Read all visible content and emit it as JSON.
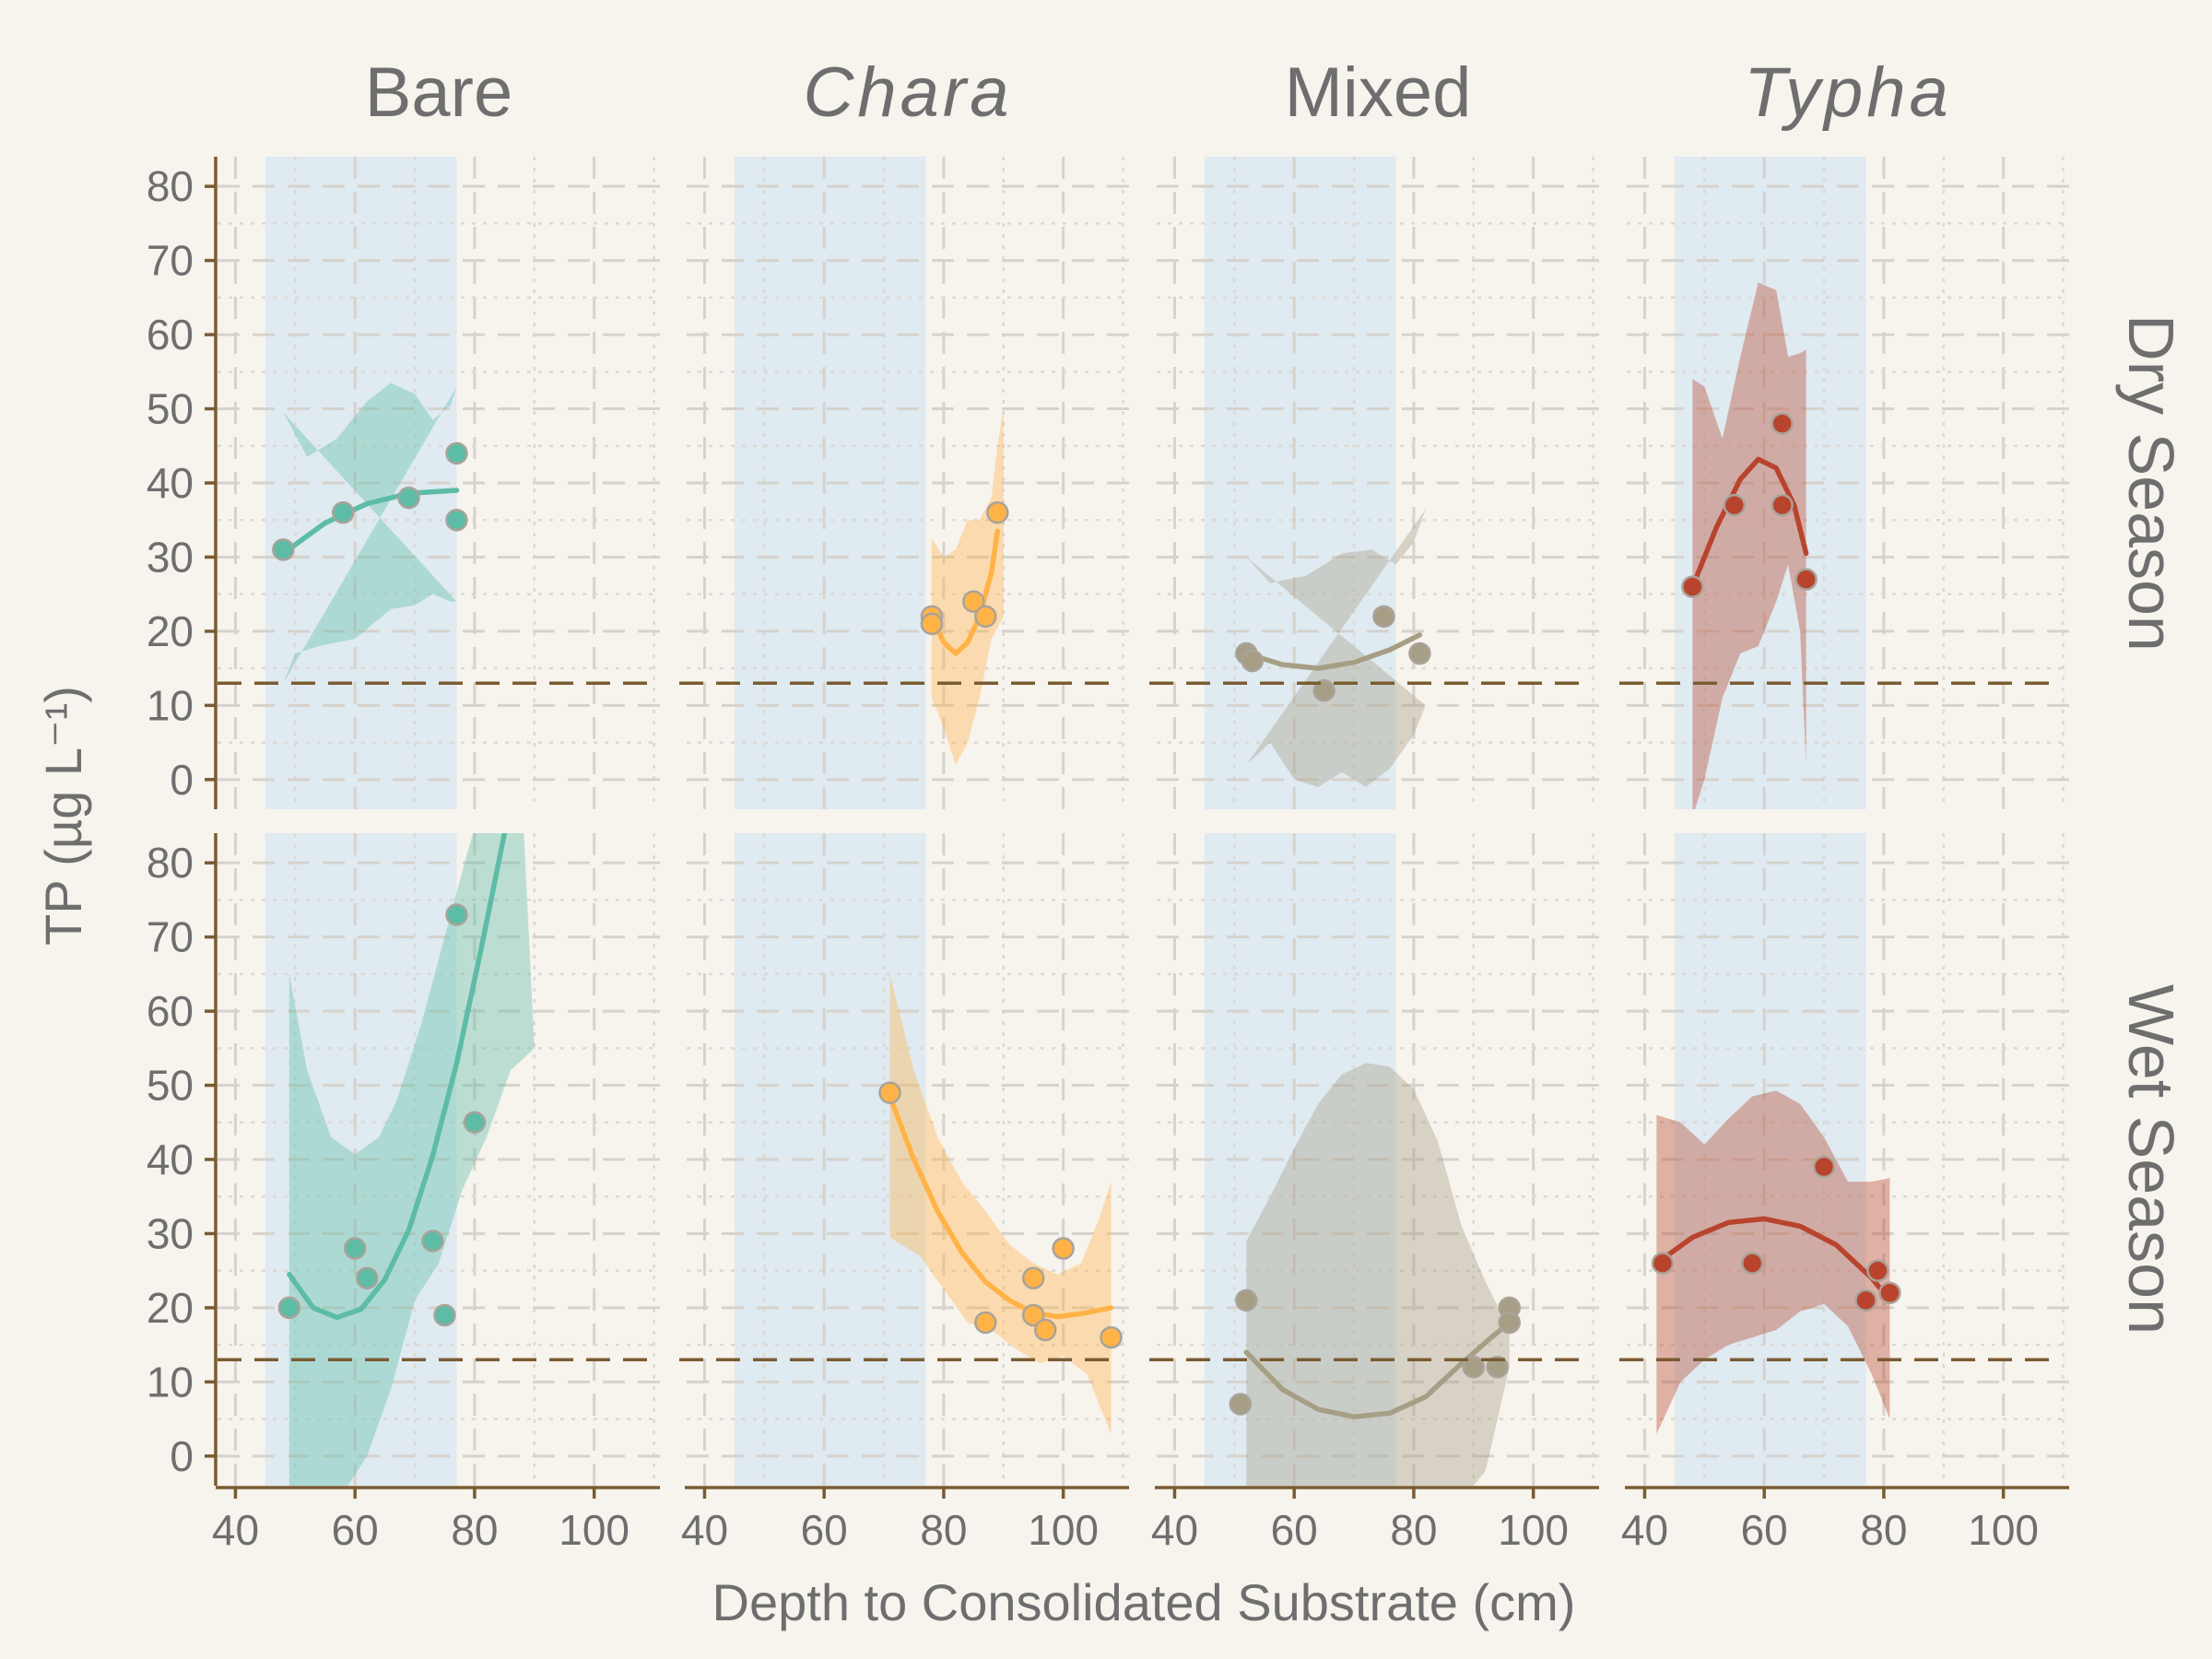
{
  "chart_data": {
    "type": "scatter",
    "facets": {
      "columns": [
        {
          "key": "bare",
          "label": "Bare",
          "italic": false
        },
        {
          "key": "chara",
          "label": "Chara",
          "italic": true
        },
        {
          "key": "mixed",
          "label": "Mixed",
          "italic": false
        },
        {
          "key": "typha",
          "label": "Typha",
          "italic": true
        }
      ],
      "rows": [
        {
          "key": "dry",
          "label": "Dry Season"
        },
        {
          "key": "wet",
          "label": "Wet Season"
        }
      ]
    },
    "xlabel": "Depth to Consolidated Substrate (cm)",
    "ylabel": "TP (µg L⁻¹)",
    "xlim": [
      37,
      111
    ],
    "ylim": [
      -4,
      84
    ],
    "xticks": [
      40,
      60,
      80,
      100
    ],
    "yticks": [
      0,
      10,
      20,
      30,
      40,
      50,
      60,
      70,
      80
    ],
    "threshold_y": 13,
    "shaded_band_x": [
      45,
      77
    ],
    "grid": true,
    "colors": {
      "background": "#f7f3ed",
      "band": "#dfeaf1",
      "threshold": "#7a5c32",
      "bare": "#5dbca5",
      "chara": "#ffb347",
      "mixed": "#a69e85",
      "typha": "#b9442d"
    },
    "panels": [
      {
        "row": "dry",
        "col": "bare",
        "points": [
          [
            48,
            31
          ],
          [
            58,
            36
          ],
          [
            69,
            38
          ],
          [
            77,
            44
          ],
          [
            77,
            35
          ]
        ],
        "fit": [
          [
            48,
            30.5
          ],
          [
            55,
            34.6
          ],
          [
            62,
            37.2
          ],
          [
            69,
            38.6
          ],
          [
            77,
            39
          ]
        ],
        "ribbon_upper": [
          [
            48,
            49.5
          ],
          [
            52,
            43.5
          ],
          [
            57,
            46
          ],
          [
            62,
            51
          ],
          [
            66,
            53.5
          ],
          [
            70,
            52
          ],
          [
            73,
            48.5
          ],
          [
            76,
            50.5
          ],
          [
            77,
            53
          ]
        ],
        "ribbon_lower": [
          [
            48,
            13
          ],
          [
            50,
            17
          ],
          [
            54,
            18
          ],
          [
            60,
            19
          ],
          [
            66,
            23
          ],
          [
            70,
            23.5
          ],
          [
            73,
            25
          ],
          [
            76,
            24
          ],
          [
            77,
            24
          ]
        ]
      },
      {
        "row": "dry",
        "col": "chara",
        "points": [
          [
            78,
            22
          ],
          [
            78,
            21
          ],
          [
            85,
            24
          ],
          [
            87,
            22
          ],
          [
            89,
            36
          ]
        ],
        "fit": [
          [
            78,
            22
          ],
          [
            80,
            18.5
          ],
          [
            82,
            17
          ],
          [
            84,
            18.5
          ],
          [
            86,
            22
          ],
          [
            88,
            28
          ],
          [
            89,
            33.5
          ]
        ],
        "ribbon_upper": [
          [
            78,
            32.5
          ],
          [
            80,
            30
          ],
          [
            82,
            31
          ],
          [
            84,
            35
          ],
          [
            86,
            35
          ],
          [
            88,
            38
          ],
          [
            89,
            45
          ],
          [
            90,
            50
          ]
        ],
        "ribbon_lower": [
          [
            90,
            22
          ],
          [
            88,
            19
          ],
          [
            86,
            11
          ],
          [
            84,
            5
          ],
          [
            82,
            2
          ],
          [
            80,
            7
          ],
          [
            78,
            11
          ]
        ]
      },
      {
        "row": "dry",
        "col": "mixed",
        "points": [
          [
            52,
            17
          ],
          [
            53,
            16
          ],
          [
            65,
            12
          ],
          [
            75,
            22
          ],
          [
            81,
            17
          ]
        ],
        "fit": [
          [
            52,
            17
          ],
          [
            58,
            15.5
          ],
          [
            64,
            15
          ],
          [
            70,
            15.8
          ],
          [
            76,
            17.5
          ],
          [
            81,
            19.5
          ]
        ],
        "ribbon_upper": [
          [
            52,
            30
          ],
          [
            56,
            26.5
          ],
          [
            62,
            27.5
          ],
          [
            68,
            30.5
          ],
          [
            73,
            31
          ],
          [
            77,
            29
          ],
          [
            80,
            32
          ],
          [
            82,
            36.5
          ]
        ],
        "ribbon_lower": [
          [
            52,
            2
          ],
          [
            56,
            5
          ],
          [
            60,
            0
          ],
          [
            64,
            -1
          ],
          [
            68,
            1
          ],
          [
            72,
            -1
          ],
          [
            76,
            1.5
          ],
          [
            80,
            6
          ],
          [
            82,
            10
          ]
        ]
      },
      {
        "row": "dry",
        "col": "typha",
        "points": [
          [
            48,
            26
          ],
          [
            55,
            37
          ],
          [
            63,
            48
          ],
          [
            63,
            37
          ],
          [
            67,
            27
          ]
        ],
        "fit": [
          [
            48,
            26
          ],
          [
            52,
            34
          ],
          [
            56,
            40.5
          ],
          [
            59,
            43.2
          ],
          [
            62,
            42
          ],
          [
            65,
            37
          ],
          [
            67,
            30.5
          ]
        ],
        "ribbon_upper": [
          [
            48,
            54
          ],
          [
            50,
            53
          ],
          [
            53,
            46
          ],
          [
            56,
            57
          ],
          [
            59,
            67
          ],
          [
            62,
            66
          ],
          [
            64,
            57
          ],
          [
            66,
            57.5
          ],
          [
            67,
            58
          ]
        ],
        "ribbon_lower": [
          [
            67,
            2
          ],
          [
            66,
            20
          ],
          [
            64,
            29
          ],
          [
            62,
            24
          ],
          [
            59,
            18
          ],
          [
            56,
            17
          ],
          [
            53,
            11
          ],
          [
            50,
            0
          ],
          [
            48,
            -5
          ]
        ]
      },
      {
        "row": "wet",
        "col": "bare",
        "points": [
          [
            49,
            20
          ],
          [
            60,
            28
          ],
          [
            62,
            24
          ],
          [
            73,
            29
          ],
          [
            75,
            19
          ],
          [
            77,
            73
          ],
          [
            80,
            45
          ]
        ],
        "fit": [
          [
            49,
            24.5
          ],
          [
            53,
            20
          ],
          [
            57,
            18.7
          ],
          [
            61,
            19.8
          ],
          [
            65,
            23.8
          ],
          [
            69,
            30.5
          ],
          [
            73,
            40.5
          ],
          [
            77,
            53
          ],
          [
            81,
            68
          ],
          [
            85,
            84
          ]
        ],
        "ribbon_upper": [
          [
            49,
            65
          ],
          [
            52,
            52
          ],
          [
            56,
            43
          ],
          [
            60,
            40.7
          ],
          [
            64,
            43
          ],
          [
            67,
            48
          ],
          [
            71,
            58
          ],
          [
            75,
            70
          ],
          [
            79,
            82
          ],
          [
            82,
            90
          ],
          [
            86,
            90
          ],
          [
            88,
            88
          ],
          [
            90,
            55
          ]
        ],
        "ribbon_lower": [
          [
            90,
            55
          ],
          [
            86,
            52
          ],
          [
            82,
            43
          ],
          [
            78,
            36
          ],
          [
            74,
            26
          ],
          [
            70,
            21
          ],
          [
            66,
            9
          ],
          [
            62,
            0
          ],
          [
            58,
            -5
          ],
          [
            53,
            -6
          ],
          [
            49,
            -6
          ]
        ]
      },
      {
        "row": "wet",
        "col": "chara",
        "points": [
          [
            71,
            49
          ],
          [
            87,
            18
          ],
          [
            95,
            24
          ],
          [
            95,
            19
          ],
          [
            97,
            17
          ],
          [
            100,
            28
          ],
          [
            108,
            16
          ]
        ],
        "fit": [
          [
            71,
            48.5
          ],
          [
            75,
            40
          ],
          [
            79,
            33
          ],
          [
            83,
            27.5
          ],
          [
            87,
            23.5
          ],
          [
            91,
            21
          ],
          [
            95,
            19.3
          ],
          [
            99,
            18.8
          ],
          [
            103,
            19.2
          ],
          [
            108,
            20
          ]
        ],
        "ribbon_upper": [
          [
            71,
            65
          ],
          [
            75,
            52
          ],
          [
            79,
            43
          ],
          [
            83,
            37
          ],
          [
            87,
            33
          ],
          [
            91,
            28.5
          ],
          [
            95,
            26
          ],
          [
            99,
            24.5
          ],
          [
            103,
            26
          ],
          [
            106,
            32
          ],
          [
            108,
            37
          ]
        ],
        "ribbon_lower": [
          [
            108,
            3
          ],
          [
            104,
            11
          ],
          [
            100,
            13.5
          ],
          [
            96,
            12.5
          ],
          [
            92,
            14.5
          ],
          [
            88,
            17
          ],
          [
            84,
            18
          ],
          [
            80,
            22.5
          ],
          [
            76,
            27
          ],
          [
            71,
            29.5
          ]
        ]
      },
      {
        "row": "wet",
        "col": "mixed",
        "points": [
          [
            51,
            7
          ],
          [
            52,
            21
          ],
          [
            90,
            12
          ],
          [
            94,
            12
          ],
          [
            96,
            20
          ],
          [
            96,
            18
          ]
        ],
        "fit": [
          [
            52,
            14
          ],
          [
            58,
            9
          ],
          [
            64,
            6.3
          ],
          [
            70,
            5.3
          ],
          [
            76,
            5.8
          ],
          [
            82,
            8
          ],
          [
            88,
            12.5
          ],
          [
            93,
            16
          ],
          [
            96,
            18
          ]
        ],
        "ribbon_upper": [
          [
            52,
            29
          ],
          [
            56,
            35
          ],
          [
            60,
            41.5
          ],
          [
            64,
            47.5
          ],
          [
            68,
            51.5
          ],
          [
            72,
            53
          ],
          [
            76,
            52.5
          ],
          [
            80,
            49.5
          ],
          [
            84,
            42.5
          ],
          [
            88,
            31
          ],
          [
            92,
            23.5
          ],
          [
            96,
            17
          ]
        ],
        "ribbon_lower": [
          [
            96,
            12
          ],
          [
            92,
            -2
          ],
          [
            88,
            -6
          ],
          [
            52,
            -6
          ]
        ]
      },
      {
        "row": "wet",
        "col": "typha",
        "points": [
          [
            43,
            26
          ],
          [
            58,
            26
          ],
          [
            70,
            39
          ],
          [
            77,
            21
          ],
          [
            79,
            25
          ],
          [
            81,
            22
          ]
        ],
        "fit": [
          [
            42,
            26
          ],
          [
            48,
            29.5
          ],
          [
            54,
            31.5
          ],
          [
            60,
            32
          ],
          [
            66,
            31
          ],
          [
            72,
            28.5
          ],
          [
            78,
            24
          ],
          [
            81,
            21
          ]
        ],
        "ribbon_upper": [
          [
            42,
            46
          ],
          [
            46,
            45
          ],
          [
            50,
            42
          ],
          [
            54,
            45.5
          ],
          [
            58,
            48.5
          ],
          [
            62,
            49.3
          ],
          [
            66,
            47.5
          ],
          [
            70,
            43
          ],
          [
            74,
            37
          ],
          [
            78,
            37
          ],
          [
            81,
            37.5
          ]
        ],
        "ribbon_lower": [
          [
            81,
            5
          ],
          [
            78,
            11
          ],
          [
            74,
            17.5
          ],
          [
            70,
            20.5
          ],
          [
            66,
            19.5
          ],
          [
            62,
            17
          ],
          [
            58,
            16
          ],
          [
            54,
            15
          ],
          [
            50,
            13
          ],
          [
            46,
            10
          ],
          [
            42,
            3
          ]
        ]
      }
    ]
  }
}
